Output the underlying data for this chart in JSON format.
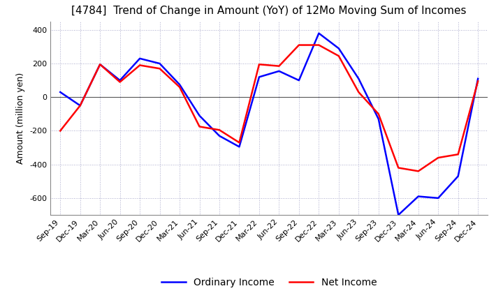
{
  "title": "[4784]  Trend of Change in Amount (YoY) of 12Mo Moving Sum of Incomes",
  "ylabel": "Amount (million yen)",
  "x_labels": [
    "Sep-19",
    "Dec-19",
    "Mar-20",
    "Jun-20",
    "Sep-20",
    "Dec-20",
    "Mar-21",
    "Jun-21",
    "Sep-21",
    "Dec-21",
    "Mar-22",
    "Jun-22",
    "Sep-22",
    "Dec-22",
    "Mar-23",
    "Jun-23",
    "Sep-23",
    "Dec-23",
    "Mar-24",
    "Jun-24",
    "Sep-24",
    "Dec-24"
  ],
  "ordinary_income": [
    30,
    -50,
    195,
    100,
    230,
    200,
    75,
    -110,
    -230,
    -295,
    120,
    155,
    100,
    380,
    290,
    110,
    -130,
    -700,
    -590,
    -600,
    -470,
    110
  ],
  "net_income": [
    -200,
    -50,
    195,
    90,
    190,
    170,
    60,
    -175,
    -195,
    -270,
    195,
    185,
    310,
    310,
    245,
    30,
    -100,
    -420,
    -440,
    -360,
    -340,
    95
  ],
  "ordinary_color": "#0000ff",
  "net_color": "#ff0000",
  "ylim": [
    -700,
    450
  ],
  "yticks": [
    -600,
    -400,
    -200,
    0,
    200,
    400
  ],
  "title_fontsize": 11,
  "axis_fontsize": 9,
  "tick_fontsize": 8,
  "legend_fontsize": 10,
  "bg_color": "#ffffff",
  "grid_color": "#aaaacc",
  "zero_line_color": "#555555"
}
